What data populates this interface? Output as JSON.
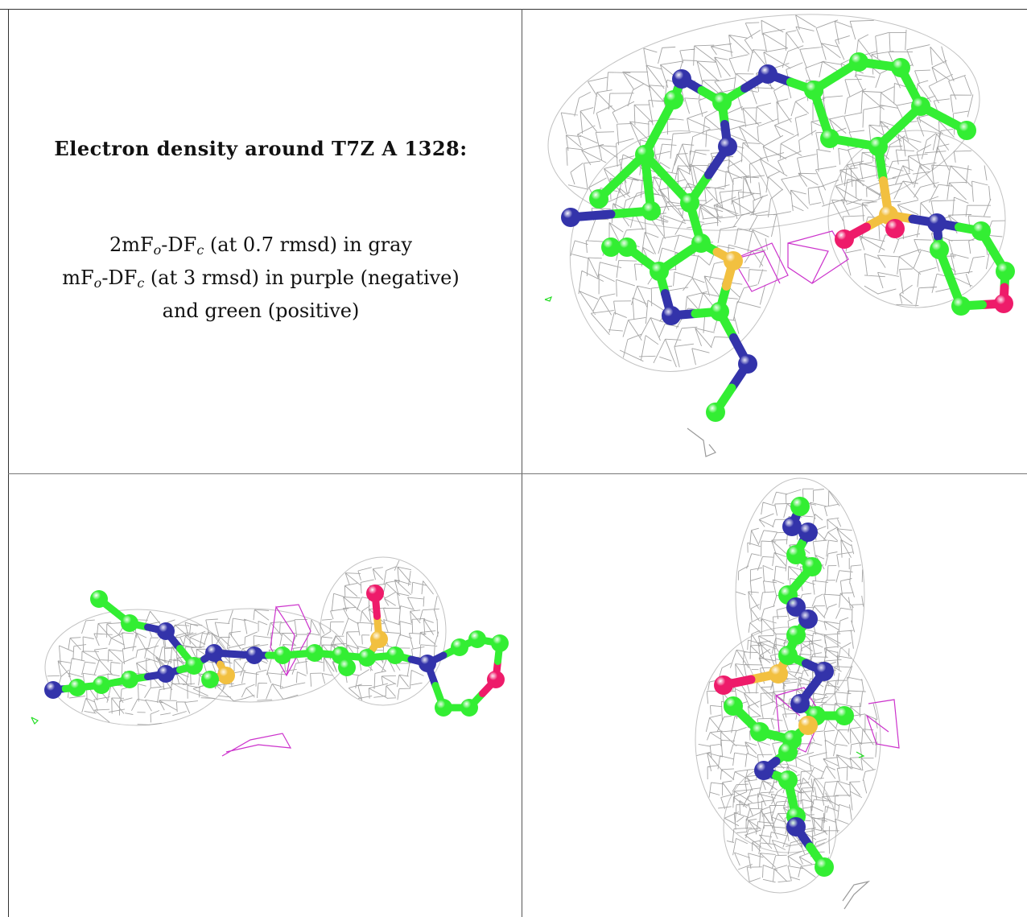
{
  "caption": {
    "title": "Electron density around T7Z A 1328:",
    "line1_a": "2mF",
    "line1_sub1": "o",
    "line1_b": "-DF",
    "line1_sub2": "c",
    "line1_c": " (at 0.7 rmsd) in gray",
    "line2_a": "mF",
    "line2_sub1": "o",
    "line2_b": "-DF",
    "line2_sub2": "c",
    "line2_c": " (at 3 rmsd) in purple (negative)",
    "line3": "and green (positive)"
  },
  "colors": {
    "carbon": "#33ee33",
    "nitrogen": "#3333aa",
    "sulfur": "#f2c040",
    "oxygen": "#ee1b6a",
    "density_2fofc": "#9a9a9a",
    "density_negative": "#cc33cc",
    "density_positive": "#22dd22"
  },
  "panels": [
    {
      "name": "view-top-right",
      "depicts": "ligand ball-and-stick model with gray mesh, face-on view"
    },
    {
      "name": "view-bottom-left",
      "depicts": "ligand ball-and-stick model with gray mesh, edge-on view"
    },
    {
      "name": "view-bottom-right",
      "depicts": "ligand ball-and-stick model with gray mesh, end-on view"
    }
  ]
}
